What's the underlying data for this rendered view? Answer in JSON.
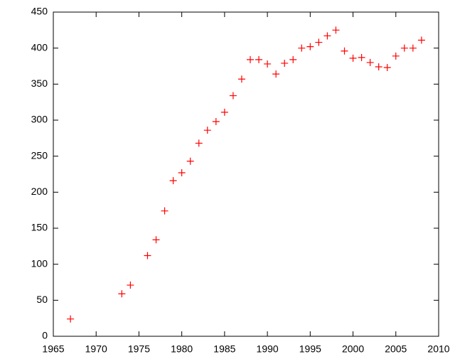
{
  "chart_data": {
    "type": "scatter",
    "marker": "plus",
    "color": "#ff0000",
    "x": [
      1967,
      1973,
      1974,
      1976,
      1977,
      1978,
      1979,
      1980,
      1981,
      1982,
      1983,
      1984,
      1985,
      1986,
      1987,
      1988,
      1989,
      1990,
      1991,
      1992,
      1993,
      1994,
      1995,
      1996,
      1997,
      1998,
      1999,
      2000,
      2001,
      2002,
      2003,
      2004,
      2005,
      2006,
      2007,
      2008
    ],
    "values": [
      24,
      59,
      71,
      112,
      134,
      174,
      216,
      227,
      243,
      268,
      286,
      298,
      311,
      334,
      357,
      384,
      384,
      378,
      364,
      379,
      384,
      400,
      402,
      408,
      417,
      425,
      396,
      386,
      387,
      380,
      374,
      373,
      389,
      400,
      400,
      411
    ],
    "xlim": [
      1965,
      2010
    ],
    "xticks": [
      1965,
      1970,
      1975,
      1980,
      1985,
      1990,
      1995,
      2000,
      2005,
      2010
    ],
    "ylim": [
      0,
      450
    ],
    "yticks": [
      0,
      50,
      100,
      150,
      200,
      250,
      300,
      350,
      400,
      450
    ],
    "grid": false
  }
}
